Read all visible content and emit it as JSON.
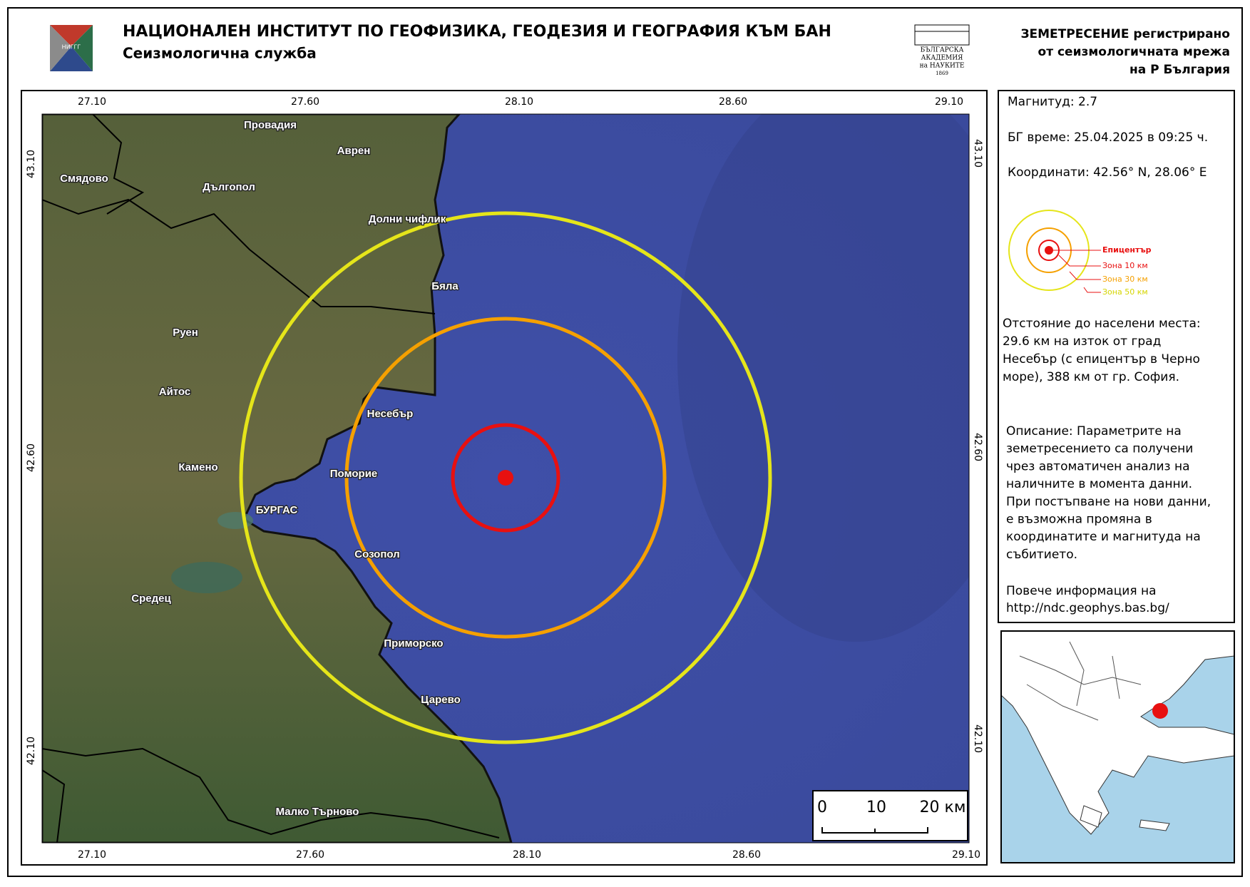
{
  "header": {
    "logo_text": "НИГГГ",
    "title": "НАЦИОНАЛЕН ИНСТИТУТ ПО ГЕОФИЗИКА, ГЕОДЕЗИЯ И ГЕОГРАФИЯ КЪМ БАН",
    "subtitle": "Сеизмологична служба",
    "bas_logo": [
      "БЪЛГАРСКА",
      "АКАДЕМИЯ",
      "на НАУКИТЕ",
      "1869"
    ],
    "right_title": [
      "ЗЕМЕТРЕСЕНИЕ регистрирано",
      "от сеизмологичната мрежа",
      "на Р България"
    ]
  },
  "map": {
    "top_ticks": [
      "27.10",
      "27.60",
      "28.10",
      "28.60",
      "29.10"
    ],
    "bottom_ticks": [
      "27.10",
      "27.60",
      "28.10",
      "28.60",
      "29.10"
    ],
    "left_ticks": [
      "43.10",
      "42.60",
      "42.10"
    ],
    "right_ticks": [
      "43.10",
      "42.60",
      "42.10"
    ],
    "places": [
      "Провадия",
      "Аврен",
      "Смядово",
      "Дългопол",
      "Долни чифлик",
      "Бяла",
      "Руен",
      "Айтос",
      "Несебър",
      "Камено",
      "Поморие",
      "БУРГАС",
      "Созопол",
      "Средец",
      "Приморско",
      "Царево",
      "Малко Търново"
    ],
    "scale_bar": [
      "0",
      "10",
      "20 км"
    ]
  },
  "info": {
    "magnitude": "Магнитуд: 2.7",
    "time": "БГ време: 25.04.2025 в 09:25 ч.",
    "coordinates": "Координати: 42.56° N, 28.06° E",
    "legend": [
      "Епицентър",
      "Зона 10 км",
      "Зона 30 км",
      "Зона 50 км"
    ],
    "distance": [
      "Отстояние до населени места:",
      "29.6 км на изток от град",
      "Несебър (с епицентър в Черно",
      "море), 388 км от гр. София."
    ],
    "description": [
      "Описание: Параметрите на",
      "земетресението са получени",
      "чрез автоматичен анализ на",
      "наличните в момента данни.",
      "При постъпване на нови данни,",
      "е възможна промяна в",
      "координатите и магнитуда на",
      "събитието."
    ],
    "more_info": [
      "Повече информация на",
      "http://ndc.geophys.bas.bg/"
    ]
  }
}
